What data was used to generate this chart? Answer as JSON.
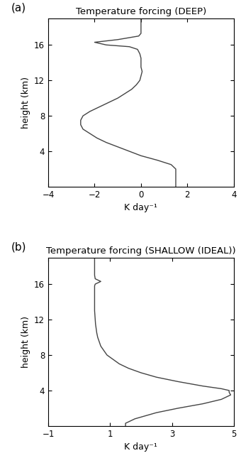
{
  "title_a": "Temperature forcing (DEEP)",
  "title_b": "Temperature forcing (SHALLOW (IDEAL))",
  "label_a": "(a)",
  "label_b": "(b)",
  "xlabel": "K day⁻¹",
  "ylabel": "height (km)",
  "xlim_a": [
    -4,
    4
  ],
  "xlim_b": [
    -1,
    5
  ],
  "ylim": [
    0,
    19
  ],
  "yticks": [
    4,
    8,
    12,
    16
  ],
  "xticks_a": [
    -4,
    -2,
    0,
    2,
    4
  ],
  "xticks_b": [
    -1,
    1,
    3,
    5
  ],
  "deep_height": [
    0.0,
    0.3,
    0.8,
    1.2,
    1.5,
    2.0,
    2.5,
    3.0,
    3.5,
    4.0,
    4.5,
    5.0,
    5.5,
    6.0,
    6.5,
    7.0,
    7.5,
    8.0,
    8.5,
    9.0,
    9.5,
    10.0,
    10.5,
    11.0,
    11.5,
    12.0,
    12.5,
    13.0,
    13.5,
    14.0,
    14.5,
    15.0,
    15.5,
    15.8,
    16.0,
    16.3,
    16.6,
    17.0,
    17.3,
    19.0
  ],
  "deep_temp": [
    1.5,
    1.5,
    1.5,
    1.5,
    1.5,
    1.5,
    1.3,
    0.7,
    0.0,
    -0.5,
    -1.0,
    -1.5,
    -1.9,
    -2.2,
    -2.5,
    -2.6,
    -2.6,
    -2.5,
    -2.2,
    -1.8,
    -1.4,
    -1.0,
    -0.7,
    -0.4,
    -0.2,
    -0.05,
    0.0,
    0.05,
    0.0,
    0.0,
    0.0,
    -0.05,
    -0.15,
    -0.5,
    -1.5,
    -2.0,
    -1.0,
    -0.1,
    0.0,
    0.0
  ],
  "shallow_height": [
    0.0,
    0.3,
    0.8,
    1.5,
    2.0,
    2.5,
    3.0,
    3.5,
    3.8,
    4.0,
    4.2,
    4.5,
    5.0,
    5.5,
    6.0,
    6.5,
    7.0,
    7.5,
    8.0,
    8.5,
    9.0,
    9.5,
    10.0,
    10.5,
    11.0,
    11.5,
    12.0,
    13.0,
    14.0,
    15.0,
    15.5,
    15.8,
    16.0,
    16.3,
    16.6,
    17.0,
    18.0,
    19.0
  ],
  "shallow_temp": [
    1.5,
    1.5,
    1.8,
    2.5,
    3.2,
    4.0,
    4.6,
    4.9,
    4.85,
    4.85,
    4.6,
    4.0,
    3.2,
    2.5,
    2.0,
    1.6,
    1.3,
    1.1,
    0.9,
    0.8,
    0.7,
    0.65,
    0.6,
    0.57,
    0.55,
    0.53,
    0.52,
    0.5,
    0.5,
    0.5,
    0.5,
    0.5,
    0.52,
    0.7,
    0.52,
    0.5,
    0.5,
    0.5
  ],
  "line_color": "#444444",
  "line_width": 1.0,
  "bg_color": "#ffffff",
  "fig_width": 3.4,
  "fig_height": 6.45,
  "dpi": 100
}
